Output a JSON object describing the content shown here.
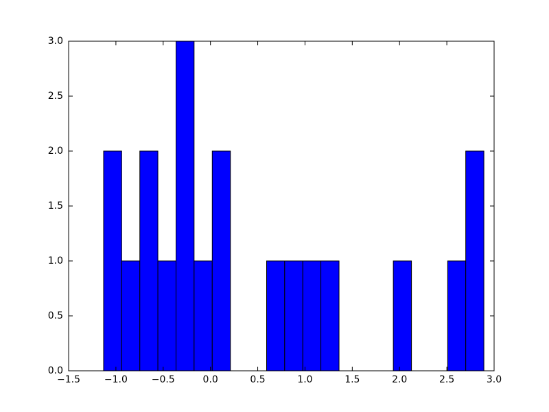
{
  "chart_data": {
    "type": "histogram",
    "color": "#0000ff",
    "bins": [
      -1.13,
      -0.939,
      -0.747,
      -0.556,
      -0.364,
      -0.173,
      0.019,
      0.211,
      0.402,
      0.594,
      0.785,
      0.977,
      1.168,
      1.36,
      1.551,
      1.743,
      1.934,
      2.126,
      2.317,
      2.509,
      2.7,
      2.892
    ],
    "values": [
      2,
      1,
      2,
      1,
      3,
      1,
      2,
      0,
      0,
      1,
      1,
      1,
      1,
      0,
      0,
      0,
      1,
      0,
      0,
      1,
      2
    ],
    "xlim": [
      -1.5,
      3.0
    ],
    "xticks": [
      {
        "value": -1.5,
        "label": "−1.5"
      },
      {
        "value": -1.0,
        "label": "−1.0"
      },
      {
        "value": -0.5,
        "label": "−0.5"
      },
      {
        "value": 0.0,
        "label": "0.0"
      },
      {
        "value": 0.5,
        "label": "0.5"
      },
      {
        "value": 1.0,
        "label": "1.0"
      },
      {
        "value": 1.5,
        "label": "1.5"
      },
      {
        "value": 2.0,
        "label": "2.0"
      },
      {
        "value": 2.5,
        "label": "2.5"
      },
      {
        "value": 3.0,
        "label": "3.0"
      }
    ],
    "ylim": [
      0,
      3
    ],
    "yticks": [
      {
        "value": 0.0,
        "label": "0.0"
      },
      {
        "value": 0.5,
        "label": "0.5"
      },
      {
        "value": 1.0,
        "label": "1.0"
      },
      {
        "value": 1.5,
        "label": "1.5"
      },
      {
        "value": 2.0,
        "label": "2.0"
      },
      {
        "value": 2.5,
        "label": "2.5"
      },
      {
        "value": 3.0,
        "label": "3.0"
      }
    ],
    "grid": false
  }
}
